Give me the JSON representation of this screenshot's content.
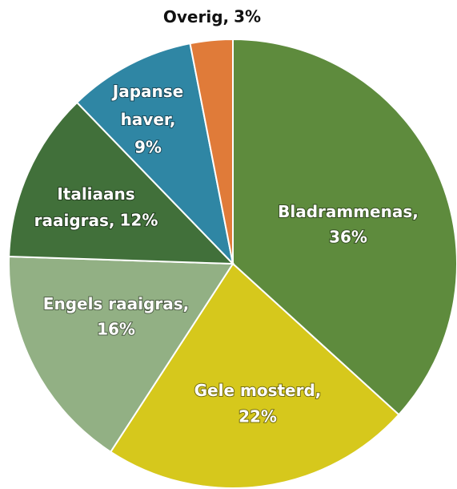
{
  "chart_data": {
    "type": "pie",
    "categories": [
      "Bladrammenas,",
      "Gele mosterd,",
      "Engels raaigras,",
      "Italiaans raaigras,",
      "Japanse haver,",
      "Overig,"
    ],
    "values": [
      36,
      22,
      16,
      12,
      9,
      3
    ],
    "value_labels": [
      "36%",
      "22%",
      "16%",
      "12%",
      "9%",
      "3%"
    ],
    "colors": [
      "#5e8b3d",
      "#d6c81c",
      "#92b084",
      "#41703a",
      "#2f86a4",
      "#e07b39"
    ]
  }
}
